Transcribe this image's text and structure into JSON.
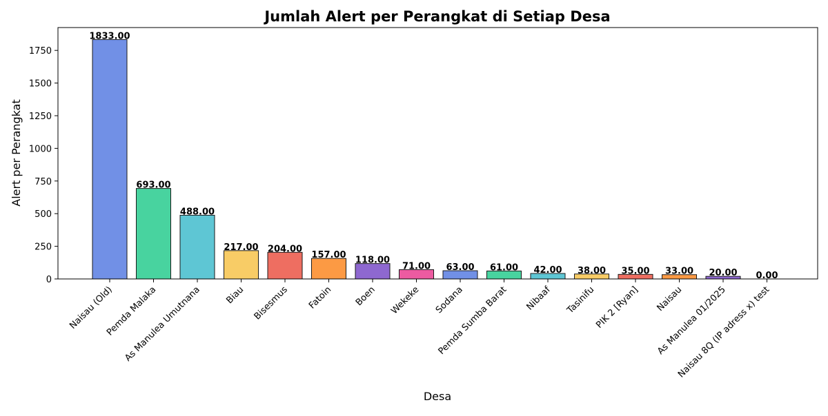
{
  "chart_data": {
    "type": "bar",
    "title": "Jumlah Alert per Perangkat di Setiap Desa",
    "xlabel": "Desa",
    "ylabel": "Alert per Perangkat",
    "ylim": [
      0,
      1925
    ],
    "yticks": [
      0,
      250,
      500,
      750,
      1000,
      1250,
      1500,
      1750
    ],
    "grid": false,
    "legend": "none",
    "categories": [
      "Naisau (Old)",
      "Pemda Malaka",
      "As Manulea Umutnana",
      "Biau",
      "Bisesmus",
      "Fatoin",
      "Boen",
      "Wekeke",
      "Sodana",
      "Pemda Sumba Barat",
      "Nibaaf",
      "Tasinifu",
      "PIK 2 [Ryan]",
      "Naisau",
      "As Manulea 01/2025",
      "Naisau 8Q (IP adress x) test"
    ],
    "values": [
      1833,
      693,
      488,
      217,
      204,
      157,
      118,
      71,
      63,
      61,
      42,
      38,
      35,
      33,
      20,
      0
    ],
    "data_labels": [
      "1833.00",
      "693.00",
      "488.00",
      "217.00",
      "204.00",
      "157.00",
      "118.00",
      "71.00",
      "63.00",
      "61.00",
      "42.00",
      "38.00",
      "35.00",
      "33.00",
      "20.00",
      "0.00"
    ],
    "colors": [
      "#7190e6",
      "#48d39f",
      "#5ec6d4",
      "#f8cc66",
      "#ee6e61",
      "#fc9a44",
      "#8e68d0",
      "#ec5ba1",
      "#7190e6",
      "#48d39f",
      "#5ec6d4",
      "#f8cc66",
      "#ee6e61",
      "#fc9a44",
      "#8e68d0",
      "#ec5ba1"
    ]
  }
}
